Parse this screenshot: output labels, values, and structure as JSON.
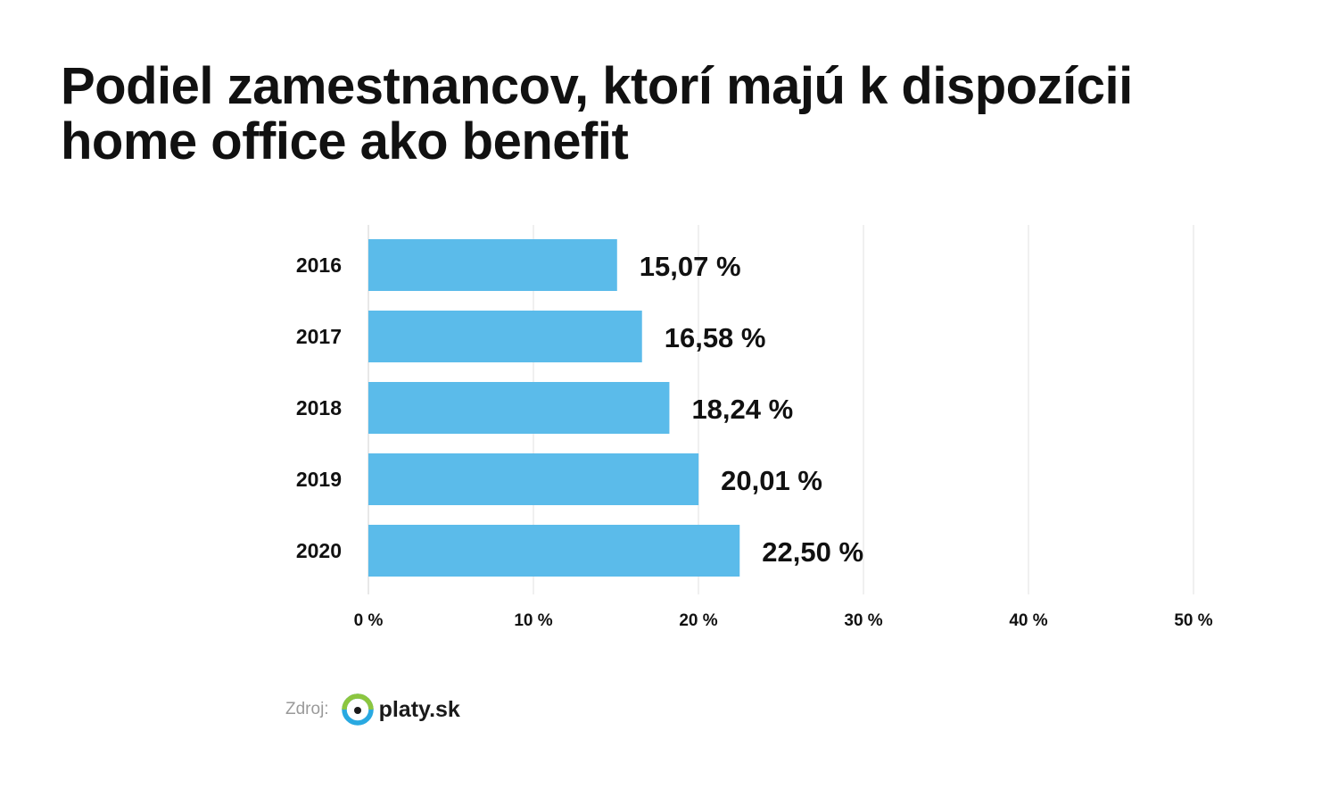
{
  "title": "Podiel zamestnancov, ktorí majú k dispozícii home office ako benefit",
  "chart_data": {
    "type": "bar",
    "orientation": "horizontal",
    "title": "Podiel zamestnancov, ktorí majú k dispozícii home office ako benefit",
    "categories": [
      "2016",
      "2017",
      "2018",
      "2019",
      "2020"
    ],
    "values": [
      15.07,
      16.58,
      18.24,
      20.01,
      22.5
    ],
    "value_labels": [
      "15,07 %",
      "16,58 %",
      "18,24 %",
      "20,01 %",
      "22,50 %"
    ],
    "xlim": [
      0,
      50
    ],
    "xticks": [
      0,
      10,
      20,
      30,
      40,
      50
    ],
    "xtick_labels": [
      "0 %",
      "10 %",
      "20 %",
      "30 %",
      "40 %",
      "50 %"
    ],
    "xlabel": "",
    "ylabel": "",
    "grid": true,
    "bar_color": "#5bbbea",
    "grid_color": "#e0e0e0"
  },
  "source": {
    "label": "Zdroj:",
    "brand": "platy.sk",
    "logo_colors": {
      "ring_green": "#8cc63f",
      "ring_blue": "#29a9e1",
      "dot": "#1a1a1a"
    }
  }
}
